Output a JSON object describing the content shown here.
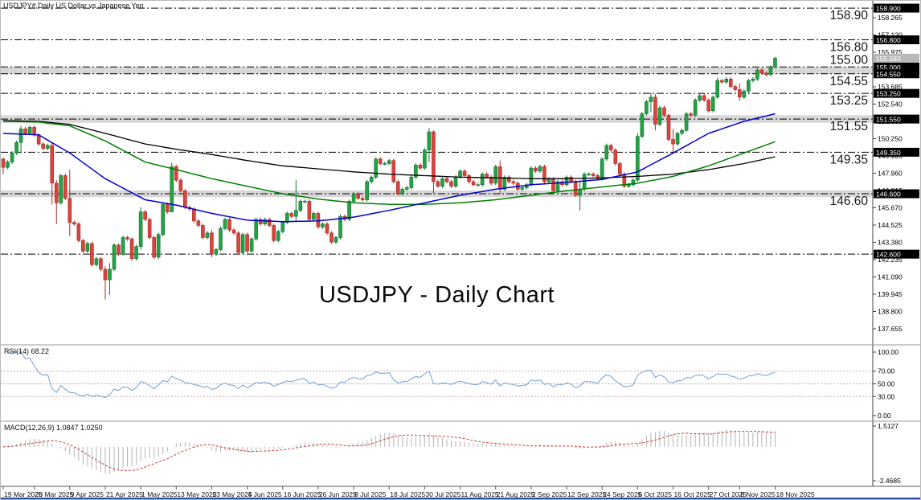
{
  "window": {
    "title": "USDJPY#,Daily  US Dollar vs Japanese Yen"
  },
  "main_title": "USDJPY - Daily Chart",
  "colors": {
    "bull_fill": "#25a244",
    "bull_edge": "#0e7030",
    "bear_fill": "#d8453e",
    "bear_edge": "#a82a24",
    "ma_black": "#000000",
    "ma_green": "#007f00",
    "ma_blue": "#0000cc",
    "rsi_line": "#6f9fd8",
    "rsi_level": "#cfa8a8",
    "macd_hist": "#b4b4b4",
    "macd_signal": "#cc3b3b",
    "band": "#d7d7d7",
    "level_line": "#000000",
    "tag_bg": "#000000",
    "tag_text": "#ffffff",
    "current_tag_bg": "#b8b8b8",
    "axis_text": "#000000"
  },
  "chart_data": {
    "type": "candlestick",
    "symbol": "USDJPY",
    "timeframe": "Daily",
    "title": "USDJPY - Daily Chart",
    "current_price": "155.583",
    "price_axis": {
      "first_tick": 137.655,
      "step": 1.145,
      "count": 19
    },
    "levels": [
      {
        "price": 158.9,
        "tag": "158.900",
        "ann": "158.90",
        "pos": "below"
      },
      {
        "price": 156.8,
        "tag": "156.800",
        "ann": "156.80",
        "pos": "below"
      },
      {
        "price": 155.0,
        "tag": "155.000",
        "ann": "155.00",
        "pos": "above"
      },
      {
        "price": 154.55,
        "tag": "154.550",
        "ann": "154.55",
        "pos": "below"
      },
      {
        "price": 153.25,
        "tag": "153.250",
        "ann": "153.25",
        "pos": "below"
      },
      {
        "price": 151.55,
        "tag": "151.550",
        "ann": "151.55",
        "pos": "below"
      },
      {
        "price": 149.35,
        "tag": "149.350",
        "ann": "149.35",
        "pos": "below"
      },
      {
        "price": 146.6,
        "tag": "146.600",
        "ann": "146.60",
        "pos": "below"
      },
      {
        "price": 142.6,
        "tag": "142.600",
        "ann": "",
        "pos": ""
      }
    ],
    "bands": [
      [
        154.55,
        155.0
      ],
      [
        151.3,
        151.8
      ],
      [
        146.38,
        146.82
      ]
    ],
    "date_labels": [
      [
        0,
        "19 Mar 2025"
      ],
      [
        7,
        "28 Mar 2025"
      ],
      [
        15,
        "9 Apr 2025"
      ],
      [
        23,
        "21 Apr 2025"
      ],
      [
        31,
        "1 May 2025"
      ],
      [
        39,
        "13 May 2025"
      ],
      [
        47,
        "23 May 2025"
      ],
      [
        55,
        "4 Jun 2025"
      ],
      [
        63,
        "16 Jun 2025"
      ],
      [
        71,
        "26 Jun 2025"
      ],
      [
        79,
        "8 Jul 2025"
      ],
      [
        87,
        "18 Jul 2025"
      ],
      [
        95,
        "30 Jul 2025"
      ],
      [
        103,
        "11 Aug 2025"
      ],
      [
        111,
        "21 Aug 2025"
      ],
      [
        119,
        "2 Sep 2025"
      ],
      [
        127,
        "12 Sep 2025"
      ],
      [
        135,
        "24 Sep 2025"
      ],
      [
        143,
        "6 Oct 2025"
      ],
      [
        151,
        "16 Oct 2025"
      ],
      [
        159,
        "27 Oct 2025"
      ],
      [
        166,
        "6 Nov 2025"
      ],
      [
        174,
        "18 Nov 2025"
      ]
    ],
    "open_first": 148.9,
    "candles": [
      [
        148.35,
        147.9,
        149.0
      ],
      148.7,
      149.3,
      150.0,
      [
        150.9,
        149.3,
        151.1
      ],
      150.6,
      151.0,
      150.5,
      149.9,
      149.6,
      149.8,
      [
        147.3,
        145.9,
        150.0
      ],
      [
        146.0,
        144.6,
        147.5
      ],
      147.8,
      146.3,
      [
        144.7,
        143.8,
        148.2
      ],
      144.6,
      143.5,
      142.8,
      143.3,
      141.9,
      142.3,
      141.6,
      [
        140.9,
        139.6,
        141.8
      ],
      [
        141.6,
        139.9,
        142.0
      ],
      143.2,
      142.6,
      143.7,
      143.6,
      142.3,
      143.1,
      [
        145.4,
        142.9,
        145.7
      ],
      144.9,
      143.7,
      142.4,
      143.9,
      145.9,
      145.4,
      [
        148.4,
        145.6,
        148.65
      ],
      147.5,
      146.8,
      145.7,
      145.6,
      144.8,
      144.5,
      143.7,
      144.0,
      [
        142.6,
        142.4,
        144.2
      ],
      142.9,
      144.3,
      144.9,
      144.2,
      144.0,
      142.7,
      143.9,
      142.8,
      143.6,
      144.9,
      144.6,
      144.9,
      144.5,
      143.5,
      144.1,
      144.7,
      145.3,
      145.1,
      [
        145.5,
        144.8,
        147.5
      ],
      146.1,
      146.1,
      144.9,
      145.3,
      144.4,
      144.6,
      144.0,
      143.4,
      143.7,
      145.1,
      144.9,
      146.1,
      146.6,
      146.3,
      146.2,
      147.4,
      147.7,
      148.9,
      148.6,
      148.6,
      148.8,
      147.4,
      146.6,
      146.9,
      147.0,
      147.7,
      148.5,
      148.3,
      149.5,
      [
        150.7,
        148.7,
        150.95
      ],
      [
        147.4,
        146.6,
        150.8
      ],
      147.1,
      147.6,
      147.4,
      147.1,
      147.7,
      148.1,
      147.8,
      147.4,
      147.2,
      147.2,
      147.9,
      147.7,
      147.3,
      148.4,
      [
        146.9,
        146.6,
        148.8
      ],
      147.7,
      147.4,
      147.3,
      146.9,
      147.0,
      147.2,
      148.3,
      148.1,
      148.4,
      147.4,
      147.6,
      146.8,
      147.4,
      147.2,
      147.7,
      147.4,
      146.5,
      [
        146.9,
        145.5,
        147.4
      ],
      147.9,
      147.9,
      147.8,
      147.6,
      148.9,
      149.8,
      149.5,
      148.6,
      147.9,
      147.1,
      147.2,
      147.5,
      [
        150.4,
        147.4,
        150.6
      ],
      151.9,
      152.7,
      [
        153.0,
        152.0,
        153.3
      ],
      [
        151.2,
        150.8,
        153.2
      ],
      152.3,
      151.8,
      150.2,
      [
        149.9,
        149.35,
        150.9
      ],
      150.6,
      150.8,
      151.9,
      151.8,
      152.8,
      153.1,
      152.8,
      152.1,
      153.0,
      [
        154.1,
        152.9,
        154.3
      ],
      154.0,
      154.2,
      153.7,
      153.5,
      [
        153.0,
        152.75,
        153.9
      ],
      153.4,
      154.1,
      154.2,
      154.8,
      154.6,
      154.5,
      155.0,
      [
        155.583,
        154.9,
        155.68
      ]
    ],
    "moving_averages": [
      {
        "name": "ma-slow-black",
        "color_key": "ma_black",
        "width": 1.3,
        "anchors": [
          [
            0,
            151.45
          ],
          [
            8,
            151.4
          ],
          [
            15,
            151.2
          ],
          [
            23,
            150.6
          ],
          [
            32,
            149.9
          ],
          [
            39,
            149.55
          ],
          [
            47,
            149.2
          ],
          [
            55,
            148.8
          ],
          [
            63,
            148.45
          ],
          [
            71,
            148.25
          ],
          [
            79,
            148.05
          ],
          [
            87,
            147.9
          ],
          [
            95,
            147.8
          ],
          [
            103,
            147.7
          ],
          [
            111,
            147.65
          ],
          [
            119,
            147.6
          ],
          [
            127,
            147.6
          ],
          [
            135,
            147.65
          ],
          [
            143,
            147.75
          ],
          [
            151,
            147.9
          ],
          [
            159,
            148.2
          ],
          [
            167,
            148.6
          ],
          [
            174,
            149.05
          ]
        ]
      },
      {
        "name": "ma-medium-green",
        "color_key": "ma_green",
        "width": 1.5,
        "anchors": [
          [
            0,
            151.4
          ],
          [
            8,
            151.35
          ],
          [
            15,
            151.1
          ],
          [
            23,
            150.1
          ],
          [
            32,
            148.7
          ],
          [
            39,
            148.2
          ],
          [
            47,
            147.6
          ],
          [
            55,
            147.1
          ],
          [
            63,
            146.6
          ],
          [
            71,
            146.25
          ],
          [
            79,
            146.0
          ],
          [
            87,
            145.9
          ],
          [
            95,
            145.9
          ],
          [
            103,
            146.0
          ],
          [
            111,
            146.2
          ],
          [
            119,
            146.5
          ],
          [
            127,
            146.8
          ],
          [
            135,
            147.05
          ],
          [
            143,
            147.3
          ],
          [
            151,
            147.75
          ],
          [
            159,
            148.45
          ],
          [
            167,
            149.3
          ],
          [
            174,
            150.05
          ]
        ]
      },
      {
        "name": "ma-fast-blue",
        "color_key": "ma_blue",
        "width": 1.5,
        "anchors": [
          [
            0,
            150.6
          ],
          [
            8,
            150.5
          ],
          [
            15,
            149.3
          ],
          [
            23,
            147.6
          ],
          [
            32,
            146.2
          ],
          [
            39,
            145.85
          ],
          [
            47,
            145.3
          ],
          [
            55,
            144.85
          ],
          [
            63,
            144.75
          ],
          [
            71,
            144.8
          ],
          [
            79,
            145.05
          ],
          [
            87,
            145.5
          ],
          [
            95,
            146.0
          ],
          [
            103,
            146.5
          ],
          [
            111,
            146.9
          ],
          [
            119,
            147.2
          ],
          [
            127,
            147.35
          ],
          [
            135,
            147.55
          ],
          [
            143,
            148.05
          ],
          [
            151,
            149.3
          ],
          [
            159,
            150.6
          ],
          [
            167,
            151.4
          ],
          [
            174,
            151.9
          ]
        ]
      }
    ],
    "rsi": {
      "label": "RSI(14) 68.22",
      "period": 14,
      "value": "68.22",
      "axis_ticks": [
        {
          "v": 100,
          "t": "100.00"
        },
        {
          "v": 70,
          "t": "70.00"
        },
        {
          "v": 50,
          "t": "50.00"
        },
        {
          "v": 30,
          "t": "30.00"
        },
        {
          "v": 0,
          "t": "0.00"
        }
      ],
      "level_lines": [
        70,
        50,
        30
      ]
    },
    "macd": {
      "label": "MACD(12,26,9) 1.0847 1.0250",
      "fast": 12,
      "slow": 26,
      "signal": 9,
      "values": "1.0847 1.0250",
      "scale_max": 1.5127,
      "scale_min": -2.4685,
      "axis_ticks": [
        {
          "v": 1.5127,
          "t": "1.5127"
        },
        {
          "v": -2.4685,
          "t": "-2.4685"
        }
      ]
    }
  }
}
